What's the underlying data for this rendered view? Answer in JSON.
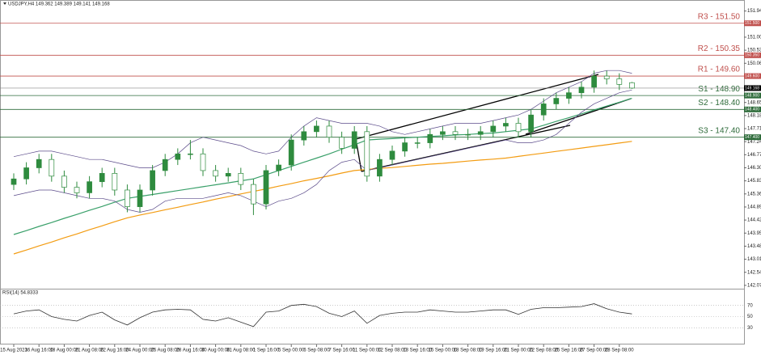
{
  "chart_data": {
    "type": "candlestick",
    "title": "USDJPY,H4 149.362 149.389 149.141 149.168",
    "color": "#2e8b3e",
    "categories": [
      "15 Aug 2023",
      null,
      "16 Aug 16:00",
      null,
      "18 Aug 00:00",
      null,
      "21 Aug 08:00",
      null,
      "22 Aug 16:00",
      null,
      "24 Aug 00:00",
      null,
      "25 Aug 08:00",
      null,
      "28 Aug 16:00",
      null,
      "30 Aug 00:00",
      null,
      "31 Aug 08:00",
      null,
      "1 Sep 16:00",
      null,
      "5 Sep 00:00",
      null,
      "6 Sep 08:00",
      null,
      "7 Sep 16:00",
      null,
      "11 Sep 00:00",
      null,
      "12 Sep 08:00",
      null,
      "13 Sep 16:00",
      null,
      "15 Sep 00:00",
      null,
      "18 Sep 08:00",
      null,
      "19 Sep 16:00",
      null,
      "21 Sep 00:00",
      null,
      "22 Sep 08:00",
      null,
      "25 Sep 16:00",
      null,
      "27 Sep 00:00",
      null,
      "28 Sep 08:00",
      null
    ],
    "open": [
      145.7,
      145.9,
      146.3,
      146.6,
      146.0,
      145.6,
      145.4,
      145.8,
      146.1,
      145.5,
      144.9,
      145.5,
      146.2,
      146.6,
      146.8,
      146.8,
      146.2,
      146.0,
      146.1,
      145.7,
      145.0,
      146.2,
      146.4,
      147.3,
      147.6,
      147.8,
      147.4,
      147.0,
      147.6,
      146.0,
      146.6,
      146.9,
      147.2,
      147.2,
      147.5,
      147.6,
      147.5,
      147.5,
      147.6,
      147.8,
      147.9,
      147.6,
      148.2,
      148.6,
      148.8,
      149.0,
      149.2,
      149.6,
      149.5,
      149.362
    ],
    "high": [
      146.1,
      146.5,
      146.8,
      146.8,
      146.2,
      145.8,
      146.0,
      146.3,
      146.3,
      145.7,
      145.7,
      146.4,
      146.8,
      147.0,
      147.3,
      147.0,
      146.4,
      146.3,
      146.3,
      145.9,
      146.4,
      146.6,
      147.5,
      147.8,
      148.0,
      148.0,
      147.6,
      147.8,
      147.8,
      146.8,
      147.1,
      147.4,
      147.4,
      147.7,
      147.8,
      147.8,
      147.7,
      147.8,
      148.0,
      148.1,
      148.1,
      148.4,
      148.8,
      149.0,
      149.2,
      149.4,
      149.8,
      149.8,
      149.7,
      149.389
    ],
    "low": [
      145.5,
      145.7,
      146.1,
      145.8,
      145.4,
      145.2,
      145.2,
      145.6,
      145.3,
      144.7,
      144.7,
      145.3,
      146.0,
      146.4,
      146.6,
      146.0,
      145.8,
      145.8,
      145.5,
      144.6,
      144.8,
      146.0,
      146.2,
      147.1,
      147.4,
      147.2,
      146.8,
      146.8,
      145.8,
      145.8,
      146.4,
      146.7,
      147.0,
      147.0,
      147.3,
      147.3,
      147.3,
      147.3,
      147.4,
      147.6,
      147.4,
      147.4,
      148.0,
      148.4,
      148.6,
      148.8,
      149.0,
      149.3,
      149.1,
      149.141
    ],
    "close": [
      145.9,
      146.3,
      146.6,
      146.0,
      145.6,
      145.4,
      145.8,
      146.1,
      145.5,
      144.9,
      145.5,
      146.2,
      146.6,
      146.8,
      146.8,
      146.2,
      146.0,
      146.1,
      145.7,
      145.0,
      146.2,
      146.4,
      147.3,
      147.6,
      147.8,
      147.4,
      147.0,
      147.6,
      146.0,
      146.6,
      146.9,
      147.2,
      147.2,
      147.5,
      147.6,
      147.5,
      147.5,
      147.6,
      147.8,
      147.9,
      147.6,
      148.2,
      148.6,
      148.8,
      149.0,
      149.2,
      149.6,
      149.5,
      149.3,
      149.168
    ],
    "lines": [
      {
        "color": "#f39c12",
        "values": [
          143.2,
          143.34,
          143.49,
          143.63,
          143.78,
          143.92,
          144.07,
          144.21,
          144.36,
          144.5,
          144.6,
          144.69,
          144.79,
          144.88,
          144.98,
          145.07,
          145.17,
          145.26,
          145.36,
          145.45,
          145.54,
          145.64,
          145.73,
          145.83,
          145.92,
          146.01,
          146.11,
          146.2,
          146.24,
          146.28,
          146.31,
          146.35,
          146.39,
          146.43,
          146.46,
          146.5,
          146.54,
          146.58,
          146.61,
          146.65,
          146.71,
          146.77,
          146.83,
          146.89,
          146.95,
          147.01,
          147.07,
          147.13,
          147.19,
          147.25
        ]
      },
      {
        "color": "#3aa06a",
        "values": [
          143.9,
          144.04,
          144.19,
          144.33,
          144.48,
          144.62,
          144.77,
          144.91,
          145.06,
          145.2,
          145.27,
          145.34,
          145.41,
          145.48,
          145.55,
          145.62,
          145.69,
          145.76,
          145.83,
          145.9,
          146.05,
          146.2,
          146.35,
          146.5,
          146.65,
          146.8,
          146.97,
          147.13,
          147.3,
          147.33,
          147.35,
          147.38,
          147.4,
          147.43,
          147.45,
          147.48,
          147.5,
          147.53,
          147.55,
          147.6,
          147.65,
          147.7,
          147.83,
          147.97,
          148.1,
          148.24,
          148.38,
          148.52,
          148.66,
          148.8
        ]
      },
      {
        "color": "#5b4b8a",
        "values": [
          146.7,
          146.8,
          146.9,
          146.9,
          146.8,
          146.7,
          146.6,
          146.6,
          146.5,
          146.4,
          146.3,
          146.3,
          146.5,
          146.8,
          147.2,
          147.4,
          147.3,
          147.2,
          147.1,
          146.9,
          146.8,
          146.9,
          147.4,
          147.8,
          148.1,
          148.0,
          147.9,
          147.9,
          147.9,
          147.8,
          147.6,
          147.5,
          147.6,
          147.7,
          147.8,
          147.9,
          147.9,
          147.9,
          148.0,
          148.1,
          148.2,
          148.4,
          148.7,
          149.0,
          149.2,
          149.4,
          149.7,
          149.8,
          149.8,
          149.7
        ]
      },
      {
        "color": "#5b4b8a",
        "values": [
          145.3,
          145.4,
          145.5,
          145.5,
          145.4,
          145.3,
          145.2,
          145.2,
          145.1,
          144.8,
          144.7,
          144.8,
          145.1,
          145.2,
          145.2,
          145.2,
          145.3,
          145.4,
          145.3,
          145.1,
          144.9,
          145.1,
          145.2,
          145.4,
          145.7,
          146.2,
          146.5,
          146.6,
          146.2,
          146.3,
          146.4,
          146.5,
          146.6,
          146.7,
          146.8,
          146.9,
          147.0,
          147.1,
          147.2,
          147.3,
          147.2,
          147.2,
          147.3,
          147.5,
          147.9,
          148.3,
          148.6,
          148.8,
          149.0,
          149.1
        ]
      }
    ],
    "levels": [
      {
        "label": "R3 - 151.50",
        "value": 151.5,
        "tag": "151.500",
        "color": "#c0504d"
      },
      {
        "label": "R2 - 150.35",
        "value": 150.35,
        "tag": "150.350",
        "color": "#c0504d"
      },
      {
        "label": "R1 - 149.60",
        "value": 149.6,
        "tag": "149.600",
        "color": "#c0504d"
      },
      {
        "label": "S1 - 148.90",
        "value": 148.9,
        "tag": "148.900",
        "color": "#2e6b3a"
      },
      {
        "label": "S2 - 148.40",
        "value": 148.4,
        "tag": "148.400",
        "color": "#2e6b3a"
      },
      {
        "label": "S3 - 147.40",
        "value": 147.4,
        "tag": "147.400",
        "color": "#2e6b3a"
      }
    ],
    "current": {
      "value": 149.168,
      "tag": "149.168",
      "color": "#000000"
    },
    "ylim": [
      141.95,
      152.25
    ],
    "yticks": [
      {
        "value": 151.94,
        "label": "151.940"
      },
      {
        "value": 151.47,
        "label": "151.470"
      },
      {
        "value": 151.0,
        "label": "151.000"
      },
      {
        "value": 150.53,
        "label": "150.530"
      },
      {
        "value": 150.06,
        "label": "150.060"
      },
      {
        "value": 149.59,
        "label": "149.590"
      },
      {
        "value": 149.12,
        "label": "149.120"
      },
      {
        "value": 148.65,
        "label": "148.650"
      },
      {
        "value": 148.18,
        "label": "148.180"
      },
      {
        "value": 147.71,
        "label": "147.710"
      },
      {
        "value": 147.24,
        "label": "147.240"
      },
      {
        "value": 146.77,
        "label": "146.770"
      },
      {
        "value": 146.3,
        "label": "146.300"
      },
      {
        "value": 145.83,
        "label": "145.830"
      },
      {
        "value": 145.36,
        "label": "145.360"
      },
      {
        "value": 144.89,
        "label": "144.890"
      },
      {
        "value": 144.42,
        "label": "144.420"
      },
      {
        "value": 143.95,
        "label": "143.950"
      },
      {
        "value": 143.48,
        "label": "143.480"
      },
      {
        "value": 143.01,
        "label": "143.010"
      },
      {
        "value": 142.54,
        "label": "142.540"
      },
      {
        "value": 142.07,
        "label": "142.070"
      }
    ],
    "rsi": {
      "title": "RSI(14) 54.8333",
      "color": "#333333",
      "values": [
        55,
        60,
        62,
        50,
        45,
        42,
        52,
        58,
        44,
        35,
        48,
        58,
        62,
        63,
        62,
        45,
        42,
        48,
        40,
        32,
        58,
        60,
        70,
        72,
        68,
        56,
        50,
        60,
        38,
        52,
        56,
        58,
        58,
        62,
        60,
        58,
        58,
        60,
        62,
        62,
        54,
        63,
        66,
        66,
        67,
        68,
        73,
        64,
        58,
        54.8333
      ],
      "ylim": [
        0,
        100
      ],
      "yticks": [
        70,
        50,
        30
      ]
    }
  }
}
